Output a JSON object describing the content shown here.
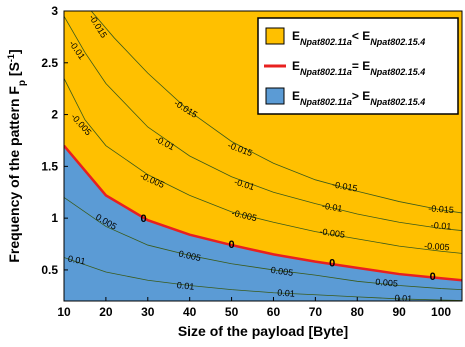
{
  "chart_data": {
    "type": "area",
    "title": "",
    "xlabel": "Size of the payload [Byte]",
    "ylabel_main": "Frequency of the pattern F",
    "ylabel_sub": "p",
    "ylabel_unit": " [S",
    "ylabel_unit_sup": "-1",
    "ylabel_unit_end": "]",
    "xlim": [
      10,
      105
    ],
    "ylim": [
      0.2,
      3
    ],
    "x_ticks": [
      10,
      20,
      30,
      40,
      50,
      60,
      70,
      80,
      90,
      100
    ],
    "y_ticks": [
      0.5,
      1,
      1.5,
      2,
      2.5,
      3
    ],
    "x_tick_labels": [
      "10",
      "20",
      "30",
      "40",
      "50",
      "60",
      "70",
      "80",
      "90",
      "100"
    ],
    "y_tick_labels": [
      "0.5",
      "1",
      "1.5",
      "2",
      "2.5",
      "3"
    ],
    "colors": {
      "upper": "#FFC000",
      "lower": "#5B9BD5",
      "boundary": "#E8201F",
      "contour": "#3a5a1a"
    },
    "boundary_line": [
      {
        "x": 10,
        "y": 1.7
      },
      {
        "x": 20,
        "y": 1.22
      },
      {
        "x": 30,
        "y": 0.98
      },
      {
        "x": 40,
        "y": 0.84
      },
      {
        "x": 50,
        "y": 0.74
      },
      {
        "x": 60,
        "y": 0.65
      },
      {
        "x": 70,
        "y": 0.58
      },
      {
        "x": 80,
        "y": 0.52
      },
      {
        "x": 90,
        "y": 0.46
      },
      {
        "x": 100,
        "y": 0.42
      },
      {
        "x": 105,
        "y": 0.4
      }
    ],
    "contours": [
      {
        "level": "-0.015",
        "points": [
          [
            16.5,
            3.0
          ],
          [
            22,
            2.74
          ],
          [
            30,
            2.4
          ],
          [
            40,
            2.03
          ],
          [
            50,
            1.74
          ],
          [
            60,
            1.53
          ],
          [
            70,
            1.37
          ],
          [
            80,
            1.26
          ],
          [
            90,
            1.16
          ],
          [
            100,
            1.08
          ],
          [
            105,
            1.05
          ]
        ]
      },
      {
        "level": "-0.01",
        "points": [
          [
            10,
            2.95
          ],
          [
            15,
            2.6
          ],
          [
            20,
            2.3
          ],
          [
            30,
            1.88
          ],
          [
            40,
            1.6
          ],
          [
            50,
            1.4
          ],
          [
            60,
            1.25
          ],
          [
            70,
            1.14
          ],
          [
            80,
            1.04
          ],
          [
            90,
            0.96
          ],
          [
            100,
            0.9
          ],
          [
            105,
            0.88
          ]
        ]
      },
      {
        "level": "-0.005",
        "points": [
          [
            10,
            2.35
          ],
          [
            15,
            1.95
          ],
          [
            20,
            1.7
          ],
          [
            30,
            1.42
          ],
          [
            40,
            1.22
          ],
          [
            50,
            1.06
          ],
          [
            60,
            0.96
          ],
          [
            70,
            0.87
          ],
          [
            80,
            0.8
          ],
          [
            90,
            0.73
          ],
          [
            100,
            0.68
          ],
          [
            105,
            0.66
          ]
        ]
      },
      {
        "level": "0.005",
        "points": [
          [
            10,
            1.2
          ],
          [
            20,
            0.92
          ],
          [
            30,
            0.74
          ],
          [
            40,
            0.64
          ],
          [
            50,
            0.56
          ],
          [
            60,
            0.5
          ],
          [
            70,
            0.45
          ],
          [
            80,
            0.39
          ],
          [
            90,
            0.35
          ],
          [
            100,
            0.32
          ],
          [
            105,
            0.31
          ]
        ]
      },
      {
        "level": "0.01",
        "points": [
          [
            10,
            0.62
          ],
          [
            20,
            0.48
          ],
          [
            30,
            0.4
          ],
          [
            40,
            0.35
          ],
          [
            50,
            0.31
          ],
          [
            60,
            0.28
          ],
          [
            70,
            0.26
          ],
          [
            80,
            0.24
          ],
          [
            90,
            0.22
          ],
          [
            100,
            0.21
          ],
          [
            105,
            0.205
          ]
        ]
      }
    ],
    "contour_labels": [
      {
        "text": "-0.015",
        "x": 18,
        "y": 2.85,
        "angle": 58
      },
      {
        "text": "-0.01",
        "x": 13,
        "y": 2.62,
        "angle": 55
      },
      {
        "text": "-0.005",
        "x": 14,
        "y": 1.9,
        "angle": 48
      },
      {
        "text": "-0.015",
        "x": 39,
        "y": 2.05,
        "angle": 32
      },
      {
        "text": "-0.01",
        "x": 34,
        "y": 1.72,
        "angle": 28
      },
      {
        "text": "-0.005",
        "x": 31,
        "y": 1.36,
        "angle": 24
      },
      {
        "text": "-0.015",
        "x": 52,
        "y": 1.66,
        "angle": 20
      },
      {
        "text": "-0.01",
        "x": 53,
        "y": 1.32,
        "angle": 17
      },
      {
        "text": "-0.005",
        "x": 53,
        "y": 1.02,
        "angle": 13
      },
      {
        "text": "-0.015",
        "x": 77,
        "y": 1.3,
        "angle": 10
      },
      {
        "text": "-0.01",
        "x": 74,
        "y": 1.1,
        "angle": 9
      },
      {
        "text": "-0.005",
        "x": 74,
        "y": 0.85,
        "angle": 8
      },
      {
        "text": "-0.015",
        "x": 100,
        "y": 1.08,
        "angle": 4
      },
      {
        "text": "-0.01",
        "x": 100,
        "y": 0.92,
        "angle": 4
      },
      {
        "text": "-0.005",
        "x": 99,
        "y": 0.72,
        "angle": 4
      },
      {
        "text": "0.005",
        "x": 20,
        "y": 0.96,
        "angle": 30
      },
      {
        "text": "0.005",
        "x": 40,
        "y": 0.63,
        "angle": 12
      },
      {
        "text": "0.005",
        "x": 62,
        "y": 0.48,
        "angle": 8
      },
      {
        "text": "0.005",
        "x": 87,
        "y": 0.37,
        "angle": 5
      },
      {
        "text": "0.01",
        "x": 13,
        "y": 0.59,
        "angle": 10
      },
      {
        "text": "0.01",
        "x": 39,
        "y": 0.34,
        "angle": 6
      },
      {
        "text": "0.01",
        "x": 63,
        "y": 0.27,
        "angle": 4
      },
      {
        "text": "0.01",
        "x": 91,
        "y": 0.22,
        "angle": 3
      }
    ],
    "zero_labels": [
      {
        "text": "0",
        "x": 29,
        "y": 0.99
      },
      {
        "text": "0",
        "x": 50,
        "y": 0.74
      },
      {
        "text": "0",
        "x": 74,
        "y": 0.56
      },
      {
        "text": "0",
        "x": 98,
        "y": 0.43
      }
    ],
    "legend": {
      "placement": "top-right",
      "entries": [
        {
          "kind": "patch-upper",
          "a_main": "E",
          "a_sub": "Npat802.11a",
          "op": "< ",
          "b_main": "E",
          "b_sub": "Npat802.15.4"
        },
        {
          "kind": "line",
          "a_main": "E",
          "a_sub": "Npat802.11a",
          "op": "= ",
          "b_main": "E",
          "b_sub": "Npat802.15.4"
        },
        {
          "kind": "patch-lower",
          "a_main": "E",
          "a_sub": "Npat802.11a",
          "op": "> ",
          "b_main": "E",
          "b_sub": "Npat802.15.4"
        }
      ]
    }
  }
}
